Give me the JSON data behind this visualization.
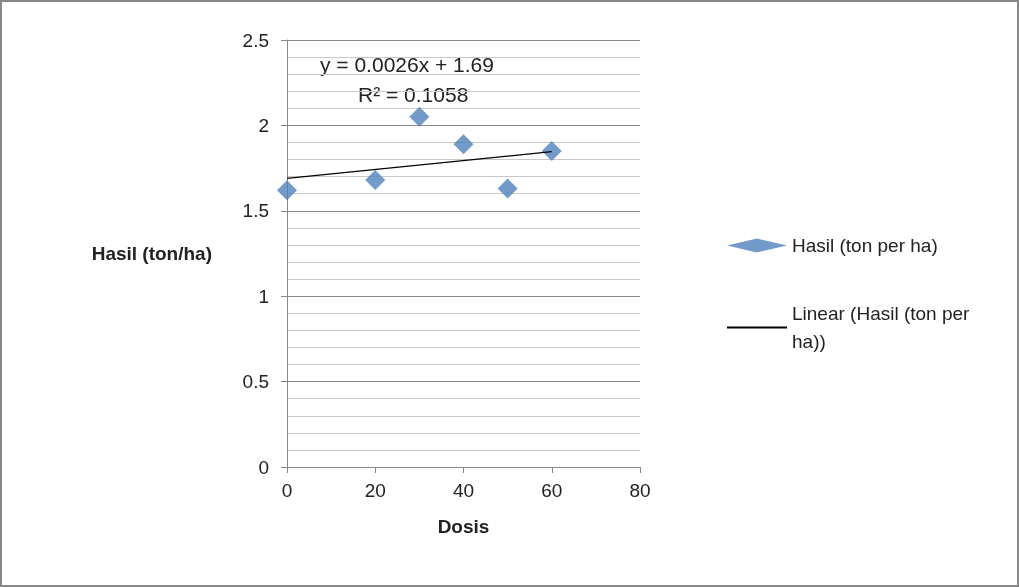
{
  "chart_data": {
    "type": "scatter",
    "xlabel": "Dosis",
    "ylabel": "Hasil (ton/ha)",
    "x": [
      0,
      20,
      30,
      40,
      50,
      60
    ],
    "series": [
      {
        "name": "Hasil (ton per ha)",
        "color": "#4f81bd",
        "values": [
          1.62,
          1.68,
          2.05,
          1.89,
          1.63,
          1.85
        ],
        "marker": "diamond"
      },
      {
        "name": "Linear (Hasil (ton per ha))",
        "type": "line",
        "color": "#000000",
        "x": [
          0,
          60
        ],
        "values": [
          1.69,
          1.846
        ],
        "marker": "none"
      }
    ],
    "annotations": [
      "y = 0.0026x + 1.69",
      "R² = 0.1058"
    ],
    "xlim": [
      0,
      80
    ],
    "xticks": [
      0,
      20,
      40,
      60,
      80
    ],
    "ylim": [
      0,
      2.5
    ],
    "yticks": [
      0,
      0.5,
      1,
      1.5,
      2,
      2.5
    ],
    "grid": "y",
    "legend": "right"
  }
}
